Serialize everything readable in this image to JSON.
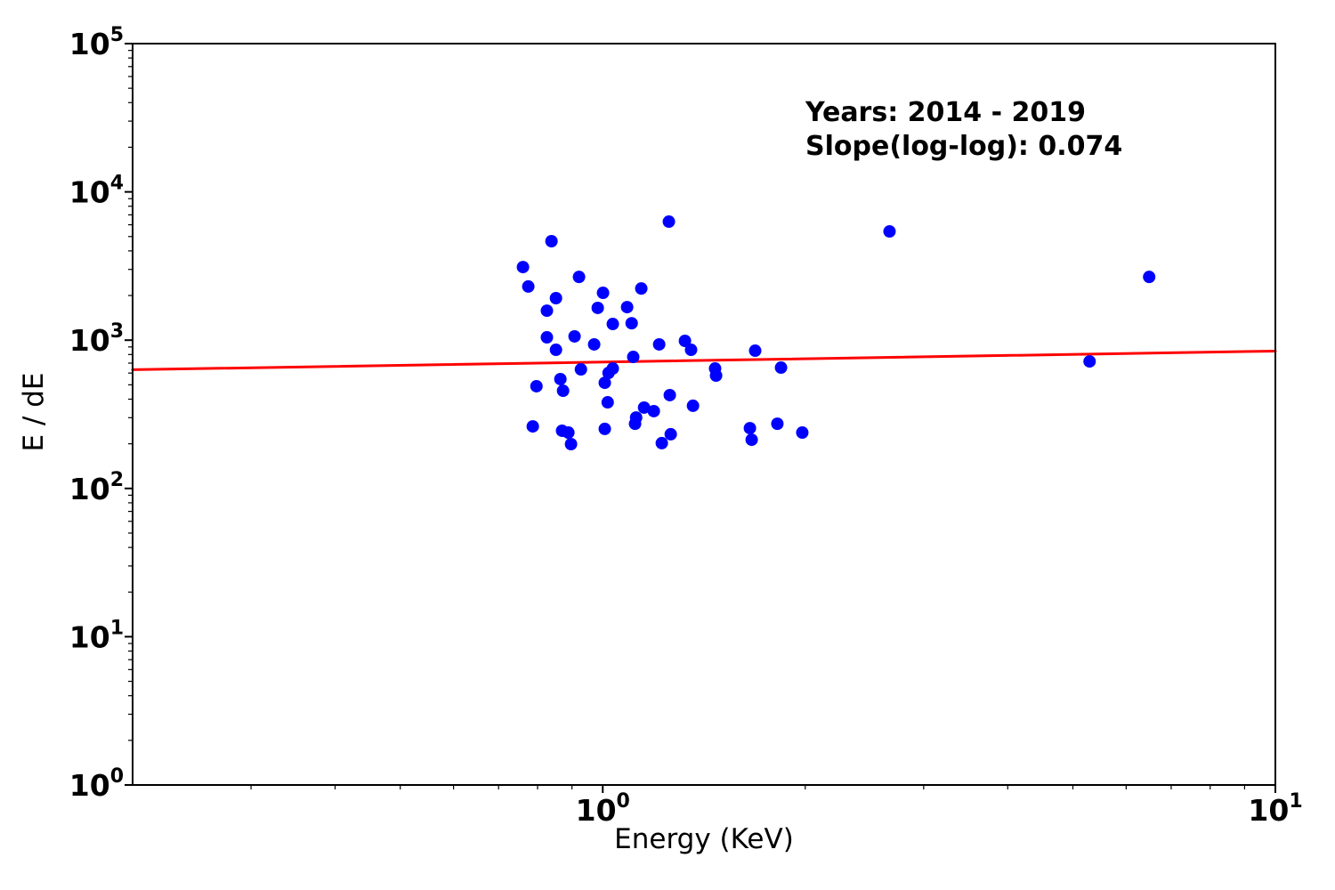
{
  "chart_data": {
    "type": "scatter",
    "title": "",
    "xlabel": "Energy (KeV)",
    "ylabel": "E / dE",
    "xscale": "log",
    "yscale": "log",
    "xlim": [
      0.2,
      10
    ],
    "ylim": [
      1,
      100000
    ],
    "grid": false,
    "legend": "none",
    "x_major_ticks": [
      1,
      10
    ],
    "y_major_ticks": [
      1,
      10,
      100,
      1000,
      10000,
      100000
    ],
    "annotation": {
      "years": "Years: 2014 - 2019",
      "slope": "Slope(log-log): 0.074"
    },
    "marker_color": "#0000ff",
    "frame_color": "#000000",
    "fit_line": {
      "color": "#ff0000",
      "slope_loglog": 0.074,
      "x": [
        0.2,
        10
      ],
      "y": [
        632,
        844
      ]
    },
    "points": {
      "x": [
        0.839,
        0.761,
        0.922,
        0.775,
        1.141,
        1.001,
        0.852,
        0.983,
        1.087,
        0.826,
        1.035,
        1.104,
        0.826,
        0.908,
        0.971,
        1.213,
        0.852,
        1.11,
        0.928,
        1.035,
        1.02,
        0.865,
        0.797,
        0.873,
        1.007,
        1.017,
        1.152,
        1.191,
        1.121,
        1.117,
        0.787,
        0.87,
        0.889,
        1.007,
        0.897,
        1.254,
        1.325,
        1.353,
        1.685,
        1.469,
        1.474,
        1.841,
        1.258,
        1.362,
        1.262,
        1.224,
        1.655,
        1.665,
        1.818,
        1.98,
        2.669,
        5.294,
        6.492
      ],
      "y": [
        4650,
        3110,
        2670,
        2300,
        2230,
        2085,
        1920,
        1650,
        1670,
        1580,
        1285,
        1300,
        1045,
        1060,
        936,
        936,
        861,
        771,
        635,
        644,
        601,
        546,
        489,
        456,
        516,
        381,
        351,
        332,
        301,
        273,
        262,
        245,
        238,
        252,
        199,
        6300,
        989,
        861,
        849,
        644,
        577,
        653,
        426,
        361,
        232,
        202,
        255,
        213,
        273,
        238,
        5410,
        719,
        2670
      ]
    }
  }
}
